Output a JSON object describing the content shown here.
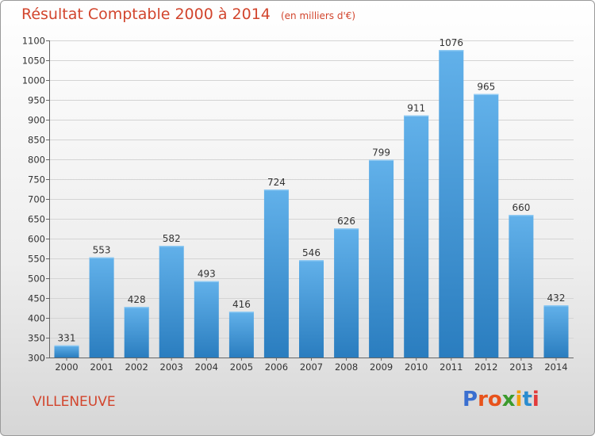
{
  "header": {
    "title": "Résultat Comptable 2000 à 2014",
    "subtitle": "(en milliers d'€)"
  },
  "footer": {
    "city": "VILLENEUVE",
    "logo_text": "Proxiti"
  },
  "colors": {
    "bar_top": "#62b1ea",
    "bar_bottom": "#2a7dbf",
    "accent": "#d2452d",
    "logo_letters": [
      "#3a6fd0",
      "#e8531c",
      "#e8531c",
      "#3b9a2c",
      "#f2a10c",
      "#2a8ccf",
      "#e23b3b"
    ]
  },
  "chart_data": {
    "type": "bar",
    "title": "Résultat Comptable 2000 à 2014",
    "subtitle": "(en milliers d'€)",
    "xlabel": "",
    "ylabel": "",
    "categories": [
      "2000",
      "2001",
      "2002",
      "2003",
      "2004",
      "2005",
      "2006",
      "2007",
      "2008",
      "2009",
      "2010",
      "2011",
      "2012",
      "2013",
      "2014"
    ],
    "values": [
      331,
      553,
      428,
      582,
      493,
      416,
      724,
      546,
      626,
      799,
      911,
      1076,
      965,
      660,
      432
    ],
    "ylim": [
      300,
      1100
    ],
    "yticks": [
      300,
      350,
      400,
      450,
      500,
      550,
      600,
      650,
      700,
      750,
      800,
      850,
      900,
      950,
      1000,
      1050,
      1100
    ],
    "grid": true,
    "legend": "none"
  }
}
